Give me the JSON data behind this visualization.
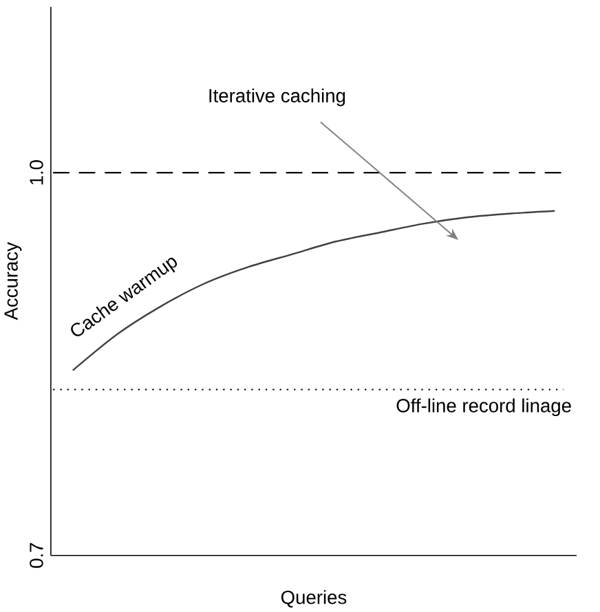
{
  "chart_data": {
    "type": "line",
    "xlabel": "Queries",
    "ylabel": "Accuracy",
    "categories": [
      null,
      null,
      null,
      null,
      null,
      null,
      null,
      null,
      null,
      null,
      null,
      null
    ],
    "series": [
      {
        "color": "#404040",
        "values": [
          0.845,
          0.873,
          0.895,
          0.913,
          0.926,
          0.936,
          0.946,
          0.953,
          0.96,
          0.965,
          0.968,
          0.97
        ]
      }
    ],
    "ylim": [
      0.7,
      1.13
    ],
    "yticks": [
      0.7,
      {
        "value": 1.0,
        "label": "1.0"
      }
    ],
    "tick_labels": "y",
    "marker": "none",
    "line_style": "solid",
    "ref_lines": [
      {
        "axis": "y",
        "value": 1.0,
        "line_style": "dashed",
        "color": "#000000"
      },
      {
        "axis": "y",
        "value": 0.83,
        "line_style": "dotted",
        "color": "#000000",
        "label": "Off-line record linage"
      }
    ],
    "annotations": [
      "Iterative caching",
      "Cache warmup"
    ]
  }
}
